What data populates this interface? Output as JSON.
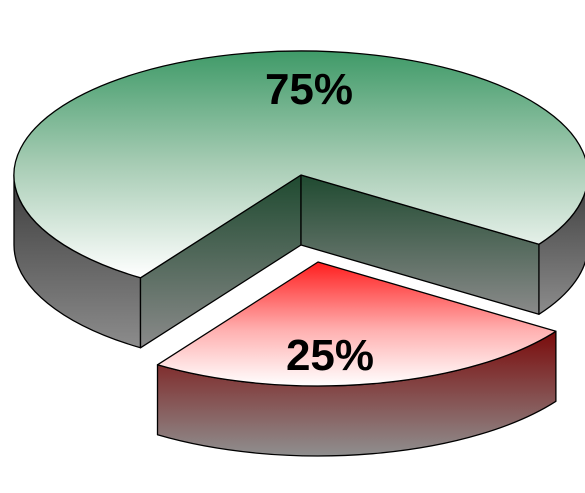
{
  "chart_data": {
    "type": "pie",
    "variant": "3d-exploded",
    "slices": [
      {
        "value": 75,
        "label": "75%",
        "color": "#3f9a68",
        "side_color": "#3c3c3c",
        "exploded": false
      },
      {
        "value": 25,
        "label": "25%",
        "color": "#ff1e1e",
        "side_color": "#7a0a0a",
        "exploded": true
      }
    ],
    "title": "",
    "legend": "none",
    "background": "#ffffff"
  }
}
